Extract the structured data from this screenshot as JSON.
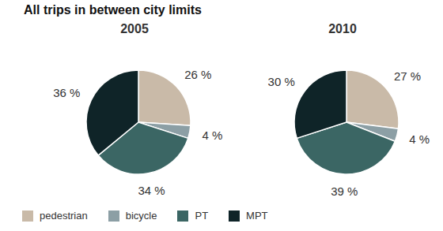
{
  "title": "All trips in between city limits",
  "legend": "lower left",
  "chart_data": [
    {
      "type": "pie",
      "title": "2005",
      "categories": [
        "pedestrian",
        "bicycle",
        "PT",
        "MPT"
      ],
      "values": [
        26,
        4,
        34,
        36
      ],
      "value_labels": [
        "26 %",
        "4 %",
        "34 %",
        "36 %"
      ],
      "colors": [
        "#c9baa8",
        "#8c9fa5",
        "#3b6664",
        "#0f2428"
      ],
      "data_labels": true
    },
    {
      "type": "pie",
      "title": "2010",
      "categories": [
        "pedestrian",
        "bicycle",
        "PT",
        "MPT"
      ],
      "values": [
        27,
        4,
        39,
        30
      ],
      "value_labels": [
        "27 %",
        "4 %",
        "39 %",
        "30 %"
      ],
      "colors": [
        "#c9baa8",
        "#8c9fa5",
        "#3b6664",
        "#0f2428"
      ],
      "data_labels": true
    }
  ]
}
